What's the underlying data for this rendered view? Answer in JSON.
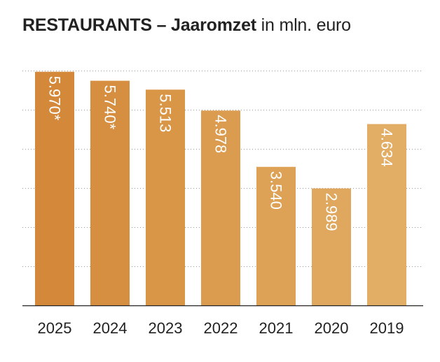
{
  "title": {
    "bold": "RESTAURANTS – Jaaromzet",
    "light": " in mln. euro"
  },
  "chart_data": {
    "type": "bar",
    "categories": [
      "2025",
      "2024",
      "2023",
      "2022",
      "2021",
      "2020",
      "2019"
    ],
    "values": [
      5970,
      5740,
      5513,
      4978,
      3540,
      2989,
      4634
    ],
    "data_labels": [
      "5.970*",
      "5.740*",
      "5.513",
      "4.978",
      "3.540",
      "2.989",
      "4.634"
    ],
    "bar_colors": [
      "#d4893a",
      "#d68f40",
      "#d99647",
      "#db9c4f",
      "#dda256",
      "#dfa85e",
      "#e2ae66"
    ],
    "label_color": "#ffffff",
    "ylim": [
      0,
      6000
    ],
    "gridlines": [
      1000,
      2000,
      3000,
      4000,
      5000,
      6000
    ],
    "grid": true,
    "grid_style": "dotted",
    "xlabel": "",
    "ylabel": ""
  }
}
